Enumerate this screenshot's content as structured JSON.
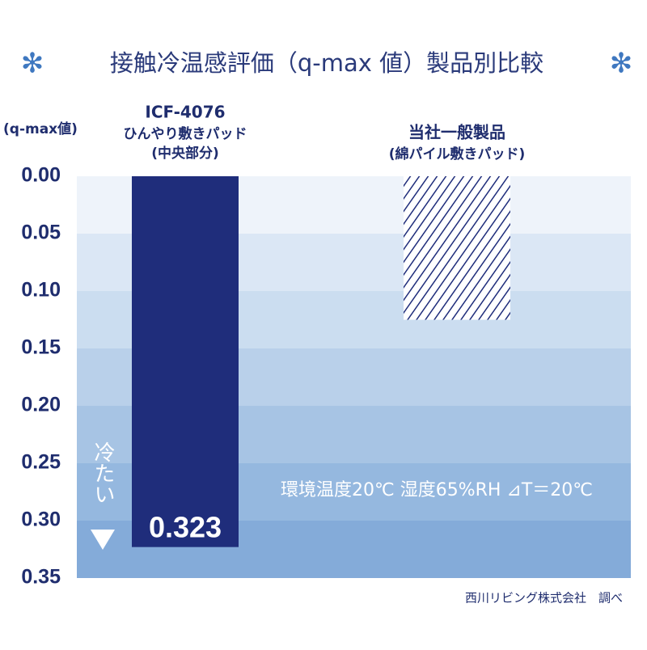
{
  "chart_data": {
    "type": "bar",
    "title": "接触冷温感評価（q-max 値）製品別比較",
    "y_label": "(q-max値)",
    "categories": [
      "ICF-4076",
      "当社一般製品"
    ],
    "category_sublabels": [
      [
        "ひんやり敷きパッド",
        "(中央部分)"
      ],
      [
        "(綿パイル敷きパッド)"
      ]
    ],
    "values": [
      0.323,
      0.125
    ],
    "bar_styles": [
      "solid",
      "hatched"
    ],
    "colors": [
      "#1f2d7b",
      "#1f2d7b"
    ],
    "ylim": [
      0,
      0.35
    ],
    "y_inverted": true,
    "yticks": [
      {
        "value": 0,
        "label": "0.00"
      },
      0.05,
      {
        "value": 0.1,
        "label": "0.10"
      },
      0.15,
      {
        "value": 0.2,
        "label": "0.20"
      },
      0.25,
      {
        "value": 0.3,
        "label": "0.30"
      },
      0.35
    ],
    "annotations": {
      "direction": "冷たい",
      "conditions": "環境温度20℃ 湿度65%RH ⊿T＝20℃",
      "source": "西川リビング株式会社　調べ"
    }
  }
}
